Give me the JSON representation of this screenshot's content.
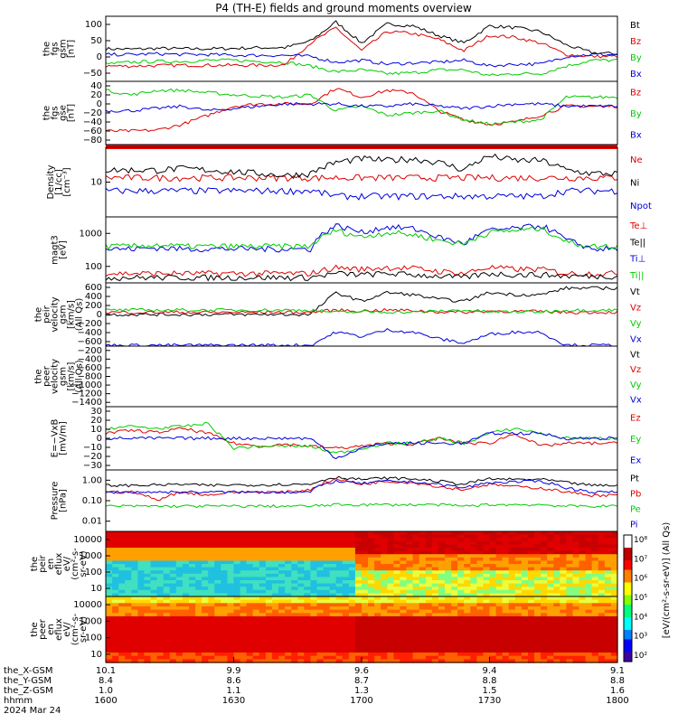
{
  "title": "P4 (TH-E) fields and ground moments overview",
  "colors": {
    "black": "#000000",
    "red": "#dd0000",
    "green": "#00cc00",
    "blue": "#0000dd"
  },
  "time_axis": {
    "tick_labels": [
      {
        "x": "10.1",
        "y": "8.4",
        "z": "1.0",
        "t": "1600"
      },
      {
        "x": "9.9",
        "y": "8.6",
        "z": "1.1",
        "t": "1630"
      },
      {
        "x": "9.6",
        "y": "8.7",
        "z": "1.3",
        "t": "1700"
      },
      {
        "x": "9.4",
        "y": "8.8",
        "z": "1.5",
        "t": "1730"
      },
      {
        "x": "9.1",
        "y": "8.8",
        "z": "1.6",
        "t": "1800"
      }
    ],
    "row_labels": [
      "the_X-GSM",
      "the_Y-GSM",
      "the_Z-GSM",
      "hhmm",
      "2024 Mar 24"
    ]
  },
  "chart_data": [
    {
      "id": "fgs_gsm",
      "type": "line",
      "ylabel": [
        "the",
        "fgs",
        "gsm",
        "[nT]"
      ],
      "ylim": [
        -60,
        110
      ],
      "yticks": [
        "100",
        "50",
        "0",
        "−50"
      ],
      "series": [
        {
          "name": "Bt",
          "color": "#000000",
          "values": [
            25,
            24,
            26,
            25,
            25,
            26,
            28,
            28,
            45,
            95,
            40,
            90,
            85,
            60,
            40,
            85,
            80,
            70,
            35,
            15,
            12
          ]
        },
        {
          "name": "Bz",
          "color": "#dd0000",
          "values": [
            -20,
            -20,
            -19,
            -18,
            -18,
            -18,
            -18,
            -17,
            40,
            80,
            20,
            70,
            65,
            50,
            20,
            60,
            55,
            40,
            10,
            5,
            5
          ]
        },
        {
          "name": "By",
          "color": "#00cc00",
          "values": [
            -15,
            -10,
            -8,
            -8,
            -5,
            -5,
            -8,
            -10,
            -20,
            -35,
            -30,
            -40,
            -38,
            -30,
            -30,
            -45,
            -40,
            -40,
            -20,
            -5,
            -5
          ]
        },
        {
          "name": "Bx",
          "color": "#0000dd",
          "values": [
            10,
            10,
            12,
            10,
            10,
            8,
            8,
            8,
            5,
            -10,
            -5,
            -15,
            -12,
            -10,
            -5,
            -20,
            -15,
            -15,
            5,
            10,
            10
          ]
        }
      ]
    },
    {
      "id": "fgs_gse",
      "type": "line",
      "ylabel": [
        "the",
        "fgs",
        "gse",
        "[nT]"
      ],
      "ylim": [
        -95,
        45
      ],
      "yticks": [
        "40",
        "20",
        "0",
        "−20",
        "−40",
        "−60",
        "−80"
      ],
      "series": [
        {
          "name": "Bz",
          "color": "#dd0000",
          "values": [
            -65,
            -65,
            -63,
            -50,
            -30,
            -10,
            -5,
            -5,
            -5,
            30,
            10,
            25,
            20,
            -20,
            -40,
            -50,
            -45,
            -30,
            -10,
            -10,
            -10
          ]
        },
        {
          "name": "By",
          "color": "#00cc00",
          "values": [
            25,
            15,
            25,
            25,
            20,
            15,
            12,
            10,
            15,
            -20,
            -10,
            -30,
            -25,
            -20,
            -40,
            -50,
            -45,
            -40,
            10,
            10,
            10
          ]
        },
        {
          "name": "Bx",
          "color": "#0000dd",
          "values": [
            -20,
            -20,
            -15,
            -10,
            -20,
            -15,
            -10,
            -5,
            -5,
            -5,
            -10,
            -10,
            -5,
            -10,
            -15,
            -10,
            -5,
            -5,
            -10,
            -10,
            -10
          ]
        }
      ]
    },
    {
      "id": "density",
      "type": "line",
      "ylabel": [
        "Density",
        "[1/cc]",
        "[cm⁻³]"
      ],
      "ylim": [
        1,
        40
      ],
      "log": true,
      "yticks": [
        "10"
      ],
      "series": [
        {
          "name": "Ne",
          "color": "#dd0000",
          "values": [
            8,
            8,
            8,
            8,
            8,
            8,
            8,
            8,
            8,
            8,
            8,
            8,
            8,
            8,
            8,
            8,
            8,
            8,
            8,
            8,
            8
          ]
        },
        {
          "name": "Ni",
          "color": "#000000",
          "values": [
            12,
            12,
            12,
            13,
            12,
            11,
            10,
            9,
            10,
            18,
            22,
            20,
            22,
            18,
            12,
            25,
            20,
            20,
            12,
            10,
            10
          ]
        },
        {
          "name": "Npot",
          "color": "#0000dd",
          "values": [
            4,
            4,
            4,
            4,
            4,
            4,
            4,
            4,
            4,
            3,
            3,
            3,
            3,
            3,
            3,
            3,
            3,
            3,
            4,
            4,
            4
          ]
        }
      ]
    },
    {
      "id": "temperature",
      "type": "line",
      "ylabel": [
        "magt3",
        "[eV]"
      ],
      "ylim": [
        40,
        2000
      ],
      "log": true,
      "yticks": [
        "1000",
        "100"
      ],
      "series": [
        {
          "name": "Te⊥",
          "color": "#dd0000",
          "values": [
            70,
            70,
            70,
            70,
            70,
            70,
            70,
            70,
            70,
            100,
            90,
            100,
            95,
            80,
            70,
            100,
            90,
            90,
            70,
            70,
            70
          ]
        },
        {
          "name": "Te||",
          "color": "#000000",
          "values": [
            55,
            55,
            55,
            55,
            55,
            55,
            55,
            55,
            55,
            70,
            65,
            70,
            65,
            60,
            55,
            70,
            65,
            65,
            60,
            60,
            60
          ]
        },
        {
          "name": "Ti⊥",
          "color": "#0000dd",
          "values": [
            300,
            300,
            320,
            300,
            300,
            300,
            300,
            300,
            300,
            1200,
            800,
            1100,
            1000,
            600,
            400,
            900,
            1000,
            1200,
            500,
            300,
            300
          ]
        },
        {
          "name": "Ti||",
          "color": "#00cc00",
          "values": [
            350,
            350,
            380,
            350,
            350,
            350,
            350,
            350,
            350,
            900,
            600,
            800,
            700,
            500,
            400,
            800,
            900,
            1000,
            450,
            350,
            350
          ]
        }
      ]
    },
    {
      "id": "peir_velocity",
      "type": "line",
      "ylabel": [
        "the",
        "peir",
        "velocity",
        "gsm",
        "[km/s]",
        "(All Qs)"
      ],
      "ylim": [
        -720,
        720
      ],
      "yticks": [
        "600",
        "400",
        "200",
        "0",
        "−200",
        "−400",
        "−600"
      ],
      "series": [
        {
          "name": "Vt",
          "color": "#000000",
          "values": [
            0,
            0,
            0,
            0,
            0,
            0,
            0,
            0,
            0,
            500,
            300,
            500,
            450,
            350,
            300,
            500,
            450,
            450,
            600,
            600,
            600
          ]
        },
        {
          "name": "Vz",
          "color": "#dd0000",
          "values": [
            50,
            50,
            50,
            50,
            50,
            50,
            50,
            50,
            50,
            100,
            80,
            100,
            90,
            60,
            50,
            80,
            70,
            70,
            50,
            50,
            50
          ]
        },
        {
          "name": "Vy",
          "color": "#00cc00",
          "values": [
            100,
            100,
            100,
            100,
            100,
            100,
            100,
            100,
            100,
            50,
            60,
            60,
            50,
            80,
            100,
            60,
            60,
            60,
            100,
            100,
            100
          ]
        },
        {
          "name": "Vx",
          "color": "#0000dd",
          "values": [
            -700,
            -700,
            -700,
            -700,
            -700,
            -700,
            -700,
            -700,
            -700,
            -400,
            -500,
            -350,
            -400,
            -550,
            -650,
            -450,
            -400,
            -400,
            -700,
            -700,
            -700
          ]
        }
      ]
    },
    {
      "id": "peer_velocity",
      "type": "line",
      "ylabel": [
        "the",
        "peer",
        "velocity",
        "gsm",
        "[km/s]",
        "(All Qs)"
      ],
      "ylim": [
        -1450,
        0
      ],
      "yticks": [
        "−200",
        "−400",
        "−600",
        "−800",
        "−1000",
        "−1200",
        "−1400"
      ],
      "series": [
        {
          "name": "Vt",
          "color": "#000000",
          "values": []
        },
        {
          "name": "Vz",
          "color": "#dd0000",
          "values": []
        },
        {
          "name": "Vy",
          "color": "#00cc00",
          "values": []
        },
        {
          "name": "Vx",
          "color": "#0000dd",
          "values": []
        }
      ]
    },
    {
      "id": "efield",
      "type": "line",
      "ylabel": [
        "E=−VxB",
        "[mV/m]"
      ],
      "ylim": [
        -32,
        32
      ],
      "yticks": [
        "30",
        "20",
        "10",
        "0",
        "−10",
        "−20",
        "−30"
      ],
      "series": [
        {
          "name": "Ez",
          "color": "#dd0000",
          "values": [
            5,
            8,
            6,
            10,
            5,
            -5,
            -8,
            -6,
            -8,
            -10,
            -8,
            -5,
            -6,
            0,
            -5,
            -5,
            5,
            -8,
            -5,
            -5,
            -5
          ]
        },
        {
          "name": "Ey",
          "color": "#00cc00",
          "values": [
            10,
            12,
            10,
            12,
            15,
            -10,
            -8,
            -8,
            -8,
            -15,
            -10,
            -5,
            -5,
            0,
            -5,
            5,
            10,
            5,
            0,
            0,
            0
          ]
        },
        {
          "name": "Ex",
          "color": "#0000dd",
          "values": [
            0,
            0,
            0,
            0,
            0,
            0,
            0,
            0,
            0,
            -20,
            -10,
            -5,
            -5,
            -5,
            -5,
            5,
            5,
            5,
            0,
            0,
            0
          ]
        }
      ]
    },
    {
      "id": "pressure",
      "type": "line",
      "ylabel": [
        "Pressure",
        "[nPa]"
      ],
      "ylim": [
        0.002,
        5
      ],
      "log": true,
      "yticks": [
        "1.00",
        "0.10",
        "0.01"
      ],
      "series": [
        {
          "name": "Pt",
          "color": "#000000",
          "values": [
            0.7,
            0.7,
            0.75,
            0.8,
            0.7,
            0.75,
            0.75,
            0.8,
            0.8,
            2,
            1.5,
            1.8,
            1.6,
            1.2,
            0.8,
            1.6,
            1.5,
            1.5,
            1.0,
            0.7,
            0.7
          ]
        },
        {
          "name": "Pb",
          "color": "#dd0000",
          "values": [
            0.3,
            0.3,
            0.1,
            0.3,
            0.2,
            0.3,
            0.3,
            0.3,
            0.4,
            1.5,
            0.8,
            1.2,
            1.0,
            0.6,
            0.4,
            0.8,
            0.6,
            0.5,
            0.3,
            0.2,
            0.2
          ]
        },
        {
          "name": "Pe",
          "color": "#00cc00",
          "values": [
            0.05,
            0.05,
            0.05,
            0.05,
            0.05,
            0.05,
            0.05,
            0.05,
            0.05,
            0.06,
            0.06,
            0.06,
            0.06,
            0.06,
            0.05,
            0.06,
            0.06,
            0.06,
            0.05,
            0.05,
            0.05
          ]
        },
        {
          "name": "Pi",
          "color": "#0000dd",
          "values": [
            0.3,
            0.3,
            0.3,
            0.3,
            0.3,
            0.3,
            0.3,
            0.3,
            0.3,
            1.2,
            0.9,
            1.2,
            1.1,
            0.8,
            0.5,
            1.0,
            1.1,
            1.2,
            0.5,
            0.3,
            0.3
          ]
        }
      ]
    },
    {
      "id": "peir_eflux",
      "type": "heatmap",
      "ylabel": [
        "the",
        "peir",
        "en",
        "eflux",
        "eV/",
        "(cm²-s-",
        "sr-eV)"
      ],
      "ylim": [
        5,
        20000
      ],
      "log": true,
      "yticks": [
        "10000",
        "1000",
        "100",
        "10"
      ]
    },
    {
      "id": "peer_eflux",
      "type": "heatmap",
      "ylabel": [
        "the",
        "peer",
        "en",
        "eflux",
        "eV/",
        "(cm²-s-",
        "sr-eV)"
      ],
      "ylim": [
        5,
        20000
      ],
      "log": true,
      "yticks": [
        "10000",
        "1000",
        "100",
        "10"
      ]
    }
  ],
  "colorbar": {
    "labels": [
      "10⁸",
      "10⁷",
      "10⁶",
      "10⁵",
      "10⁴",
      "10³",
      "10²"
    ],
    "title": "[eV/(cm²-s-sr-eV)] (All Qs)"
  }
}
